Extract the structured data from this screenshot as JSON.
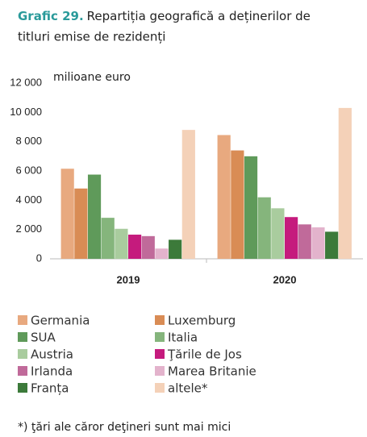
{
  "chart_data": {
    "type": "bar",
    "title": {
      "label": "Grafic 29.",
      "text": "Repartiția geografică a deținerilor de titluri emise de rezidenți"
    },
    "y_axis_label": "milioane euro",
    "categories": [
      "2019",
      "2020"
    ],
    "series": [
      {
        "name": "Germania",
        "color": "#e8a97f",
        "values": [
          6150,
          8450
        ]
      },
      {
        "name": "Luxemburg",
        "color": "#d98c55",
        "values": [
          4800,
          7400
        ]
      },
      {
        "name": "SUA",
        "color": "#5f9a5a",
        "values": [
          5750,
          7000
        ]
      },
      {
        "name": "Italia",
        "color": "#85b57c",
        "values": [
          2800,
          4200
        ]
      },
      {
        "name": "Austria",
        "color": "#a9cc9e",
        "values": [
          2050,
          3450
        ]
      },
      {
        "name": "Ţările de Jos",
        "color": "#c51b7d",
        "values": [
          1650,
          2850
        ]
      },
      {
        "name": "Irlanda",
        "color": "#c06a9a",
        "values": [
          1550,
          2350
        ]
      },
      {
        "name": "Marea Britanie",
        "color": "#e3b3cc",
        "values": [
          700,
          2150
        ]
      },
      {
        "name": "Franța",
        "color": "#3c7a3a",
        "values": [
          1300,
          1850
        ]
      },
      {
        "name": "altele*",
        "color": "#f4d1b8",
        "values": [
          8800,
          10300
        ]
      }
    ],
    "ylim": [
      0,
      12000
    ],
    "yticks": [
      0,
      {
        "value": 2000,
        "label": "2 000"
      },
      {
        "value": 4000,
        "label": "4 000"
      },
      {
        "value": 6000,
        "label": "6 000"
      },
      {
        "value": 8000,
        "label": "8 000"
      },
      {
        "value": 10000,
        "label": "10 000"
      },
      {
        "value": 12000,
        "label": "12 000"
      }
    ],
    "footnote": "*) ţări ale căror deţineri sunt mai mici"
  }
}
